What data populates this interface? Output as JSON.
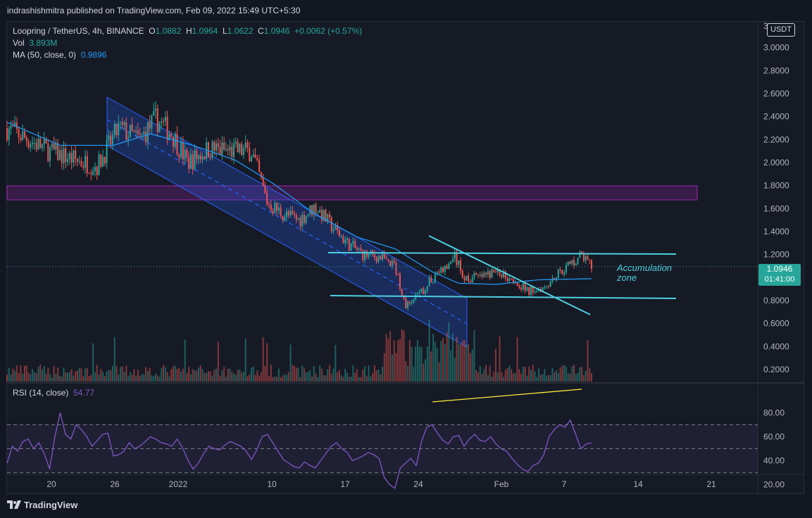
{
  "header": {
    "published": "indrashishmitra published on TradingView.com, Feb 09, 2022 15:49 UTC+5:30"
  },
  "legend": {
    "symbol": "Loopring / TetherUS, 4h, BINANCE",
    "o_label": "O",
    "o_value": "1.0882",
    "h_label": "H",
    "h_value": "1.0964",
    "l_label": "L",
    "l_value": "1.0622",
    "c_label": "C",
    "c_value": "1.0946",
    "change": "+0.0062 (+0.57%)",
    "vol_label": "Vol",
    "vol_value": "3.893M",
    "ma_label": "MA (50, close, 0)",
    "ma_value": "0.9896",
    "rsi_label": "RSI (14, close)",
    "rsi_value": "54.77"
  },
  "price_badge": {
    "price": "1.0946",
    "countdown": "01:41:00"
  },
  "currency": "USDT",
  "annotation": {
    "line1": "Accumulation",
    "line2": "zone"
  },
  "footer": {
    "brand": "TradingView"
  },
  "colors": {
    "up": "#26a69a",
    "down": "#ef5350",
    "ma": "#2196f3",
    "rsi": "#7e57c2",
    "channel": "#2962ff",
    "resistance": "#9c27b0",
    "trend": "#4dd0e1",
    "divergence": "#ffeb3b"
  },
  "chart_data": [
    {
      "type": "candlestick",
      "title": "Loopring / TetherUS, 4h, BINANCE",
      "x_ticks": [
        "20",
        "26",
        "2022",
        "10",
        "17",
        "24",
        "Feb",
        "7",
        "14",
        "21"
      ],
      "y_ticks": [
        "3.0000",
        "2.8000",
        "2.6000",
        "2.4000",
        "2.2000",
        "2.0000",
        "1.8000",
        "1.6000",
        "1.4000",
        "1.2000",
        "0.8000",
        "0.6000",
        "0.4000",
        "0.2000"
      ],
      "ylim": [
        0.1,
        3.2
      ],
      "close_path": [
        {
          "x": 0,
          "y": 2.3
        },
        {
          "x": 8,
          "y": 2.1
        },
        {
          "x": 13,
          "y": 2.02
        },
        {
          "x": 17,
          "y": 1.97
        },
        {
          "x": 21,
          "y": 2.3
        },
        {
          "x": 25,
          "y": 2.2
        },
        {
          "x": 28,
          "y": 2.38
        },
        {
          "x": 31,
          "y": 2.25
        },
        {
          "x": 34,
          "y": 2.0
        },
        {
          "x": 38,
          "y": 2.12
        },
        {
          "x": 42,
          "y": 2.1
        },
        {
          "x": 46,
          "y": 2.1
        },
        {
          "x": 49,
          "y": 1.65
        },
        {
          "x": 52,
          "y": 1.55
        },
        {
          "x": 55,
          "y": 1.5
        },
        {
          "x": 58,
          "y": 1.62
        },
        {
          "x": 61,
          "y": 1.45
        },
        {
          "x": 64,
          "y": 1.3
        },
        {
          "x": 67,
          "y": 1.2
        },
        {
          "x": 70,
          "y": 1.18
        },
        {
          "x": 73,
          "y": 1.1
        },
        {
          "x": 75,
          "y": 0.75
        },
        {
          "x": 78,
          "y": 0.87
        },
        {
          "x": 81,
          "y": 1.05
        },
        {
          "x": 83,
          "y": 1.08
        },
        {
          "x": 84,
          "y": 1.2
        },
        {
          "x": 86,
          "y": 1.0
        },
        {
          "x": 89,
          "y": 1.0
        },
        {
          "x": 92,
          "y": 1.05
        },
        {
          "x": 95,
          "y": 1.0
        },
        {
          "x": 98,
          "y": 0.88
        },
        {
          "x": 101,
          "y": 0.92
        },
        {
          "x": 104,
          "y": 1.05
        },
        {
          "x": 107,
          "y": 1.15
        },
        {
          "x": 108,
          "y": 1.2
        },
        {
          "x": 110,
          "y": 1.0946
        }
      ],
      "ma_path": [
        {
          "x": 0,
          "y": 2.35
        },
        {
          "x": 10,
          "y": 2.15
        },
        {
          "x": 20,
          "y": 2.15
        },
        {
          "x": 27,
          "y": 2.25
        },
        {
          "x": 35,
          "y": 2.15
        },
        {
          "x": 43,
          "y": 2.02
        },
        {
          "x": 50,
          "y": 1.82
        },
        {
          "x": 58,
          "y": 1.55
        },
        {
          "x": 66,
          "y": 1.35
        },
        {
          "x": 73,
          "y": 1.25
        },
        {
          "x": 80,
          "y": 1.05
        },
        {
          "x": 85,
          "y": 0.95
        },
        {
          "x": 92,
          "y": 0.94
        },
        {
          "x": 100,
          "y": 0.98
        },
        {
          "x": 110,
          "y": 0.9896
        }
      ]
    },
    {
      "type": "line",
      "title": "RSI (14, close)",
      "y_ticks": [
        "80.00",
        "60.00",
        "40.00",
        "20.00"
      ],
      "ylim": [
        10,
        83
      ],
      "bands": [
        30,
        50,
        70
      ],
      "values": [
        38,
        52,
        48,
        56,
        58,
        50,
        55,
        46,
        33,
        60,
        80,
        62,
        58,
        70,
        66,
        60,
        52,
        57,
        62,
        63,
        44,
        45,
        48,
        55,
        50,
        52,
        56,
        60,
        58,
        55,
        54,
        52,
        58,
        51,
        41,
        33,
        38,
        46,
        52,
        50,
        49,
        53,
        56,
        54,
        52,
        48,
        41,
        49,
        60,
        62,
        55,
        48,
        41,
        38,
        35,
        34,
        39,
        36,
        34,
        40,
        46,
        52,
        55,
        50,
        47,
        40,
        42,
        44,
        47,
        45,
        42,
        26,
        20,
        17,
        34,
        38,
        42,
        36,
        56,
        68,
        70,
        63,
        57,
        54,
        60,
        61,
        52,
        58,
        62,
        57,
        56,
        60,
        54,
        50,
        48,
        42,
        37,
        33,
        31,
        36,
        38,
        45,
        60,
        66,
        70,
        68,
        74,
        62,
        50,
        54,
        54.77
      ]
    }
  ]
}
